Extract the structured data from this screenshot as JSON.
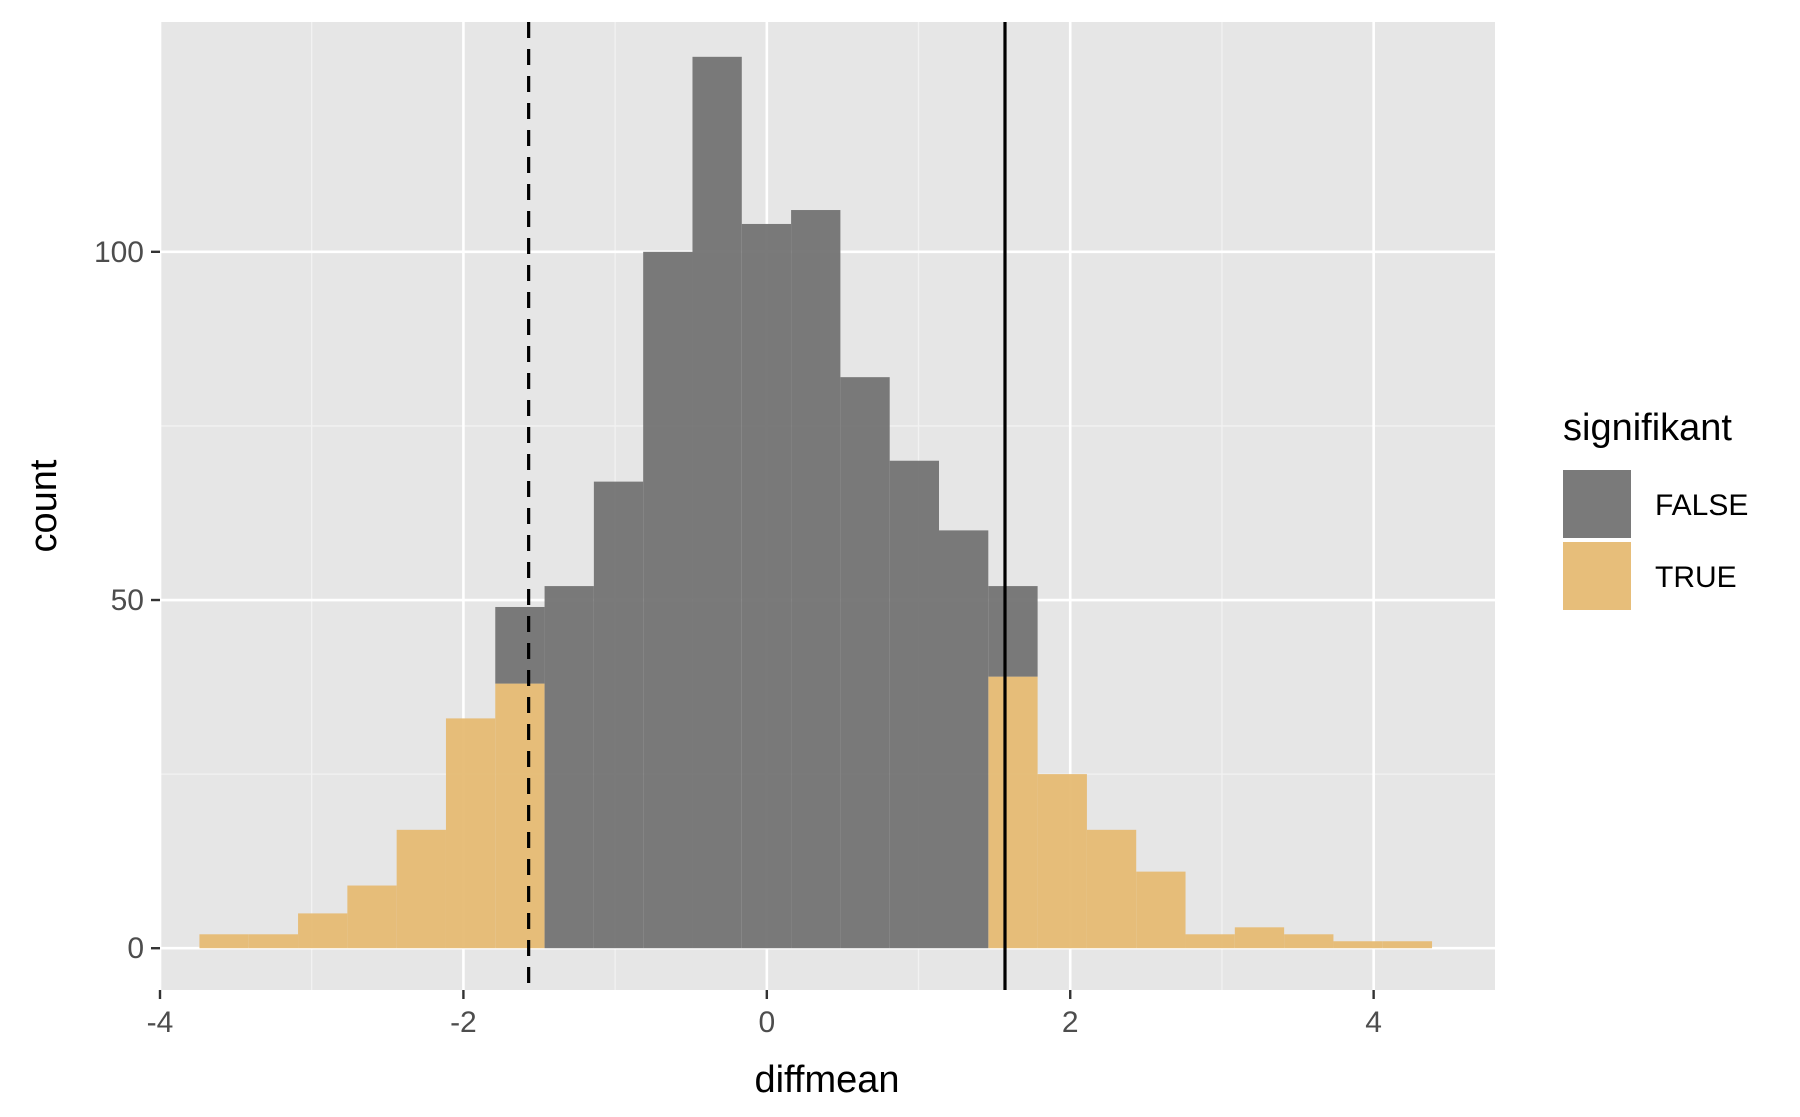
{
  "chart_data": {
    "type": "bar",
    "subtype": "stacked-histogram",
    "title": "",
    "xlabel": "diffmean",
    "ylabel": "count",
    "xlim": [
      -4.0,
      4.8
    ],
    "ylim": [
      -6,
      133
    ],
    "x_ticks": [
      -4,
      -2,
      0,
      2,
      4
    ],
    "x_tick_labels": [
      "-4",
      "-2",
      "0",
      "2",
      "4"
    ],
    "y_ticks": [
      0,
      50,
      100
    ],
    "y_tick_labels": [
      "0",
      "50",
      "100"
    ],
    "grid": true,
    "background": "#e6e6e6",
    "legend": {
      "title": "signifikant",
      "position": "right",
      "entries": [
        {
          "label": "FALSE",
          "color": "#737373"
        },
        {
          "label": "TRUE",
          "color": "#e6bb73"
        }
      ]
    },
    "bin_edges": [
      -3.74,
      -3.415,
      -3.09,
      -2.765,
      -2.44,
      -2.115,
      -1.79,
      -1.465,
      -1.14,
      -0.815,
      -0.49,
      -0.165,
      0.16,
      0.485,
      0.81,
      1.135,
      1.46,
      1.785,
      2.11,
      2.435,
      2.76,
      3.085,
      3.41,
      3.735,
      4.06,
      4.385
    ],
    "series": [
      {
        "name": "TRUE",
        "color": "#e6bb73",
        "values": [
          2,
          2,
          5,
          9,
          17,
          33,
          38,
          0,
          0,
          0,
          0,
          0,
          0,
          0,
          0,
          0,
          39,
          25,
          17,
          11,
          2,
          3,
          2,
          1,
          1
        ]
      },
      {
        "name": "FALSE",
        "color": "#737373",
        "values": [
          0,
          0,
          0,
          0,
          0,
          0,
          11,
          52,
          67,
          100,
          128,
          104,
          106,
          82,
          70,
          60,
          13,
          0,
          0,
          0,
          0,
          0,
          0,
          0,
          0
        ]
      }
    ],
    "reference_lines": [
      {
        "x": -1.57,
        "style": "dashed",
        "color": "#000000"
      },
      {
        "x": 1.57,
        "style": "solid",
        "color": "#000000"
      }
    ]
  }
}
